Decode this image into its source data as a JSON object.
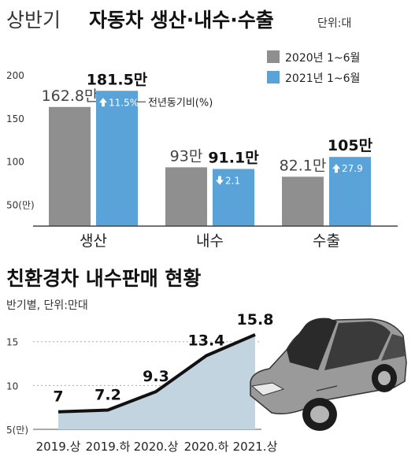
{
  "chart_data": [
    {
      "type": "bar",
      "title_light": "상반기",
      "title_bold": "자동차 생산·내수·수출",
      "unit": "단위:대",
      "categories": [
        "생산",
        "내수",
        "수출"
      ],
      "series": [
        {
          "name": "2020년 1~6월",
          "values": [
            162.8,
            93,
            82.1
          ],
          "labels": [
            "162.8만",
            "93만",
            "82.1만"
          ],
          "color": "#8f8f8f"
        },
        {
          "name": "2021년 1~6월",
          "values": [
            181.5,
            91.1,
            105
          ],
          "labels": [
            "181.5만",
            "91.1만",
            "105만"
          ],
          "color": "#5aa3d8"
        }
      ],
      "yoy": [
        {
          "direction": "up",
          "text": "11.5%"
        },
        {
          "direction": "down",
          "text": "2.1"
        },
        {
          "direction": "up",
          "text": "27.9"
        }
      ],
      "yoy_label": "전년동기비(%)",
      "yticks": [
        "200",
        "150",
        "100",
        "50(만)"
      ],
      "ytick_values": [
        200,
        150,
        100,
        50
      ],
      "ylim": [
        25,
        210
      ],
      "grid": false
    },
    {
      "type": "area",
      "title": "친환경차 내수판매 현황",
      "subtitle": "반기별, 단위:만대",
      "x": [
        "2019.상",
        "2019.하",
        "2020.상",
        "2020.하",
        "2021.상"
      ],
      "values": [
        7,
        7.2,
        9.3,
        13.4,
        15.8
      ],
      "value_labels": [
        "7",
        "7.2",
        "9.3",
        "13.4",
        "15.8"
      ],
      "yticks": [
        "15",
        "10",
        "5(만)"
      ],
      "ytick_values": [
        15,
        10,
        5
      ],
      "ylim": [
        5,
        16.5
      ],
      "grid": true,
      "line_color": "#111111",
      "fill_color": "#c2d4e0"
    }
  ],
  "illustration": {
    "icon": "car-icon",
    "body_color": "#9a9a9a"
  }
}
